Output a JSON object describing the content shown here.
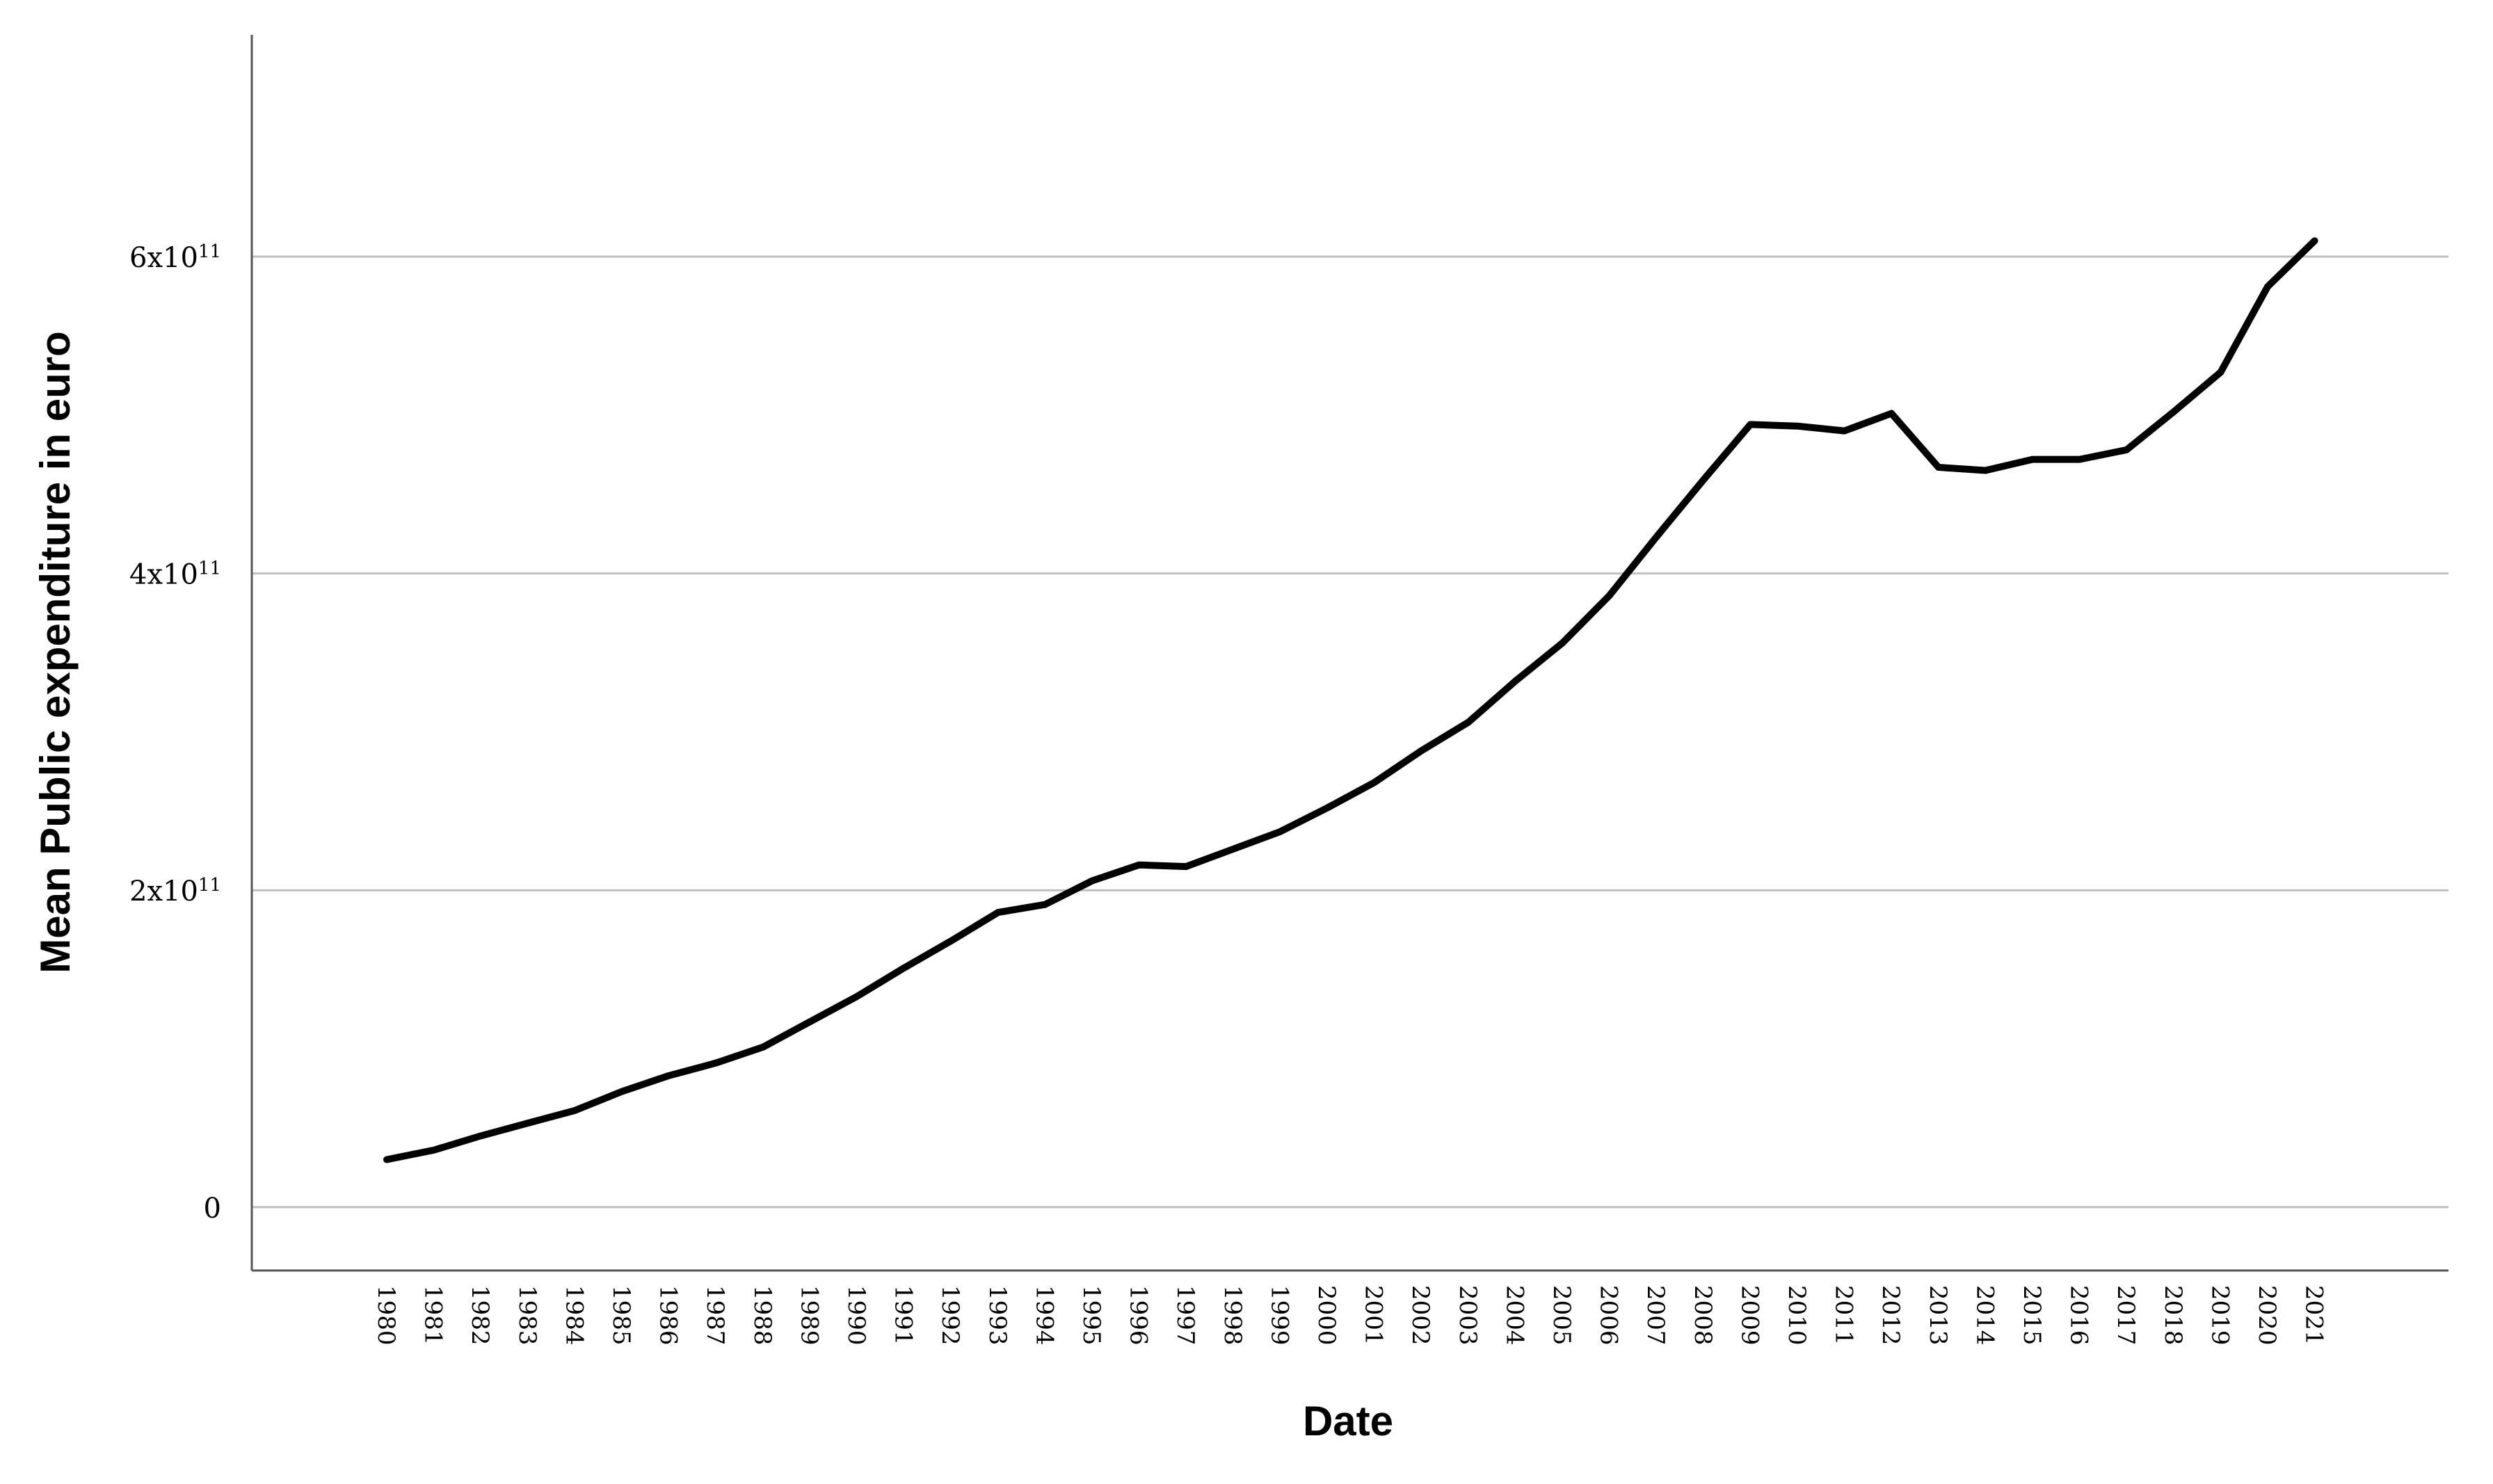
{
  "chart_data": {
    "type": "line",
    "title": "",
    "xlabel": "Date",
    "ylabel": "Mean Public expenditure in euro",
    "x": [
      1980,
      1981,
      1982,
      1983,
      1984,
      1985,
      1986,
      1987,
      1988,
      1989,
      1990,
      1991,
      1992,
      1993,
      1994,
      1995,
      1996,
      1997,
      1998,
      1999,
      2000,
      2001,
      2002,
      2003,
      2004,
      2005,
      2006,
      2007,
      2008,
      2009,
      2010,
      2011,
      2012,
      2013,
      2014,
      2015,
      2016,
      2017,
      2018,
      2019,
      2020,
      2021
    ],
    "x_tick_labels": [
      "1980",
      "1981",
      "1982",
      "1983",
      "1984",
      "1985",
      "1986",
      "1987",
      "1988",
      "1989",
      "1990",
      "1991",
      "1992",
      "1993",
      "1994",
      "1995",
      "1996",
      "1997",
      "1998",
      "1999",
      "2000",
      "2001",
      "2002",
      "2003",
      "2004",
      "2005",
      "2006",
      "2007",
      "2008",
      "2009",
      "2010",
      "2011",
      "2012",
      "2013",
      "2014",
      "2015",
      "2016",
      "2017",
      "2018",
      "2019",
      "2020",
      "2021"
    ],
    "series": [
      {
        "values": [
          30000000000.0,
          36000000000.0,
          45000000000.0,
          53000000000.0,
          61000000000.0,
          73000000000.0,
          83000000000.0,
          91000000000.0,
          101000000000.0,
          117000000000.0,
          133000000000.0,
          151000000000.0,
          168000000000.0,
          186000000000.0,
          191000000000.0,
          206000000000.0,
          216000000000.0,
          215000000000.0,
          226000000000.0,
          237000000000.0,
          252000000000.0,
          268000000000.0,
          288000000000.0,
          306000000000.0,
          332000000000.0,
          356000000000.0,
          386000000000.0,
          423000000000.0,
          459000000000.0,
          494000000000.0,
          493000000000.0,
          490000000000.0,
          501000000000.0,
          467000000000.0,
          465000000000.0,
          472000000000.0,
          472000000000.0,
          478000000000.0,
          502000000000.0,
          527000000000.0,
          581000000000.0,
          610000000000.0
        ]
      }
    ],
    "y_ticks": [
      {
        "value": 0,
        "mantissa": "0",
        "exponent": ""
      },
      {
        "value": 200000000000.0,
        "mantissa": "2x10",
        "exponent": "11"
      },
      {
        "value": 400000000000.0,
        "mantissa": "4x10",
        "exponent": "11"
      },
      {
        "value": 600000000000.0,
        "mantissa": "6x10",
        "exponent": "11"
      }
    ],
    "ylim": [
      -40000000000.0,
      740000000000.0
    ],
    "grid": "horizontal",
    "line_color": "#000000",
    "grid_color": "#bfbfbf",
    "axis_color": "#555555"
  }
}
